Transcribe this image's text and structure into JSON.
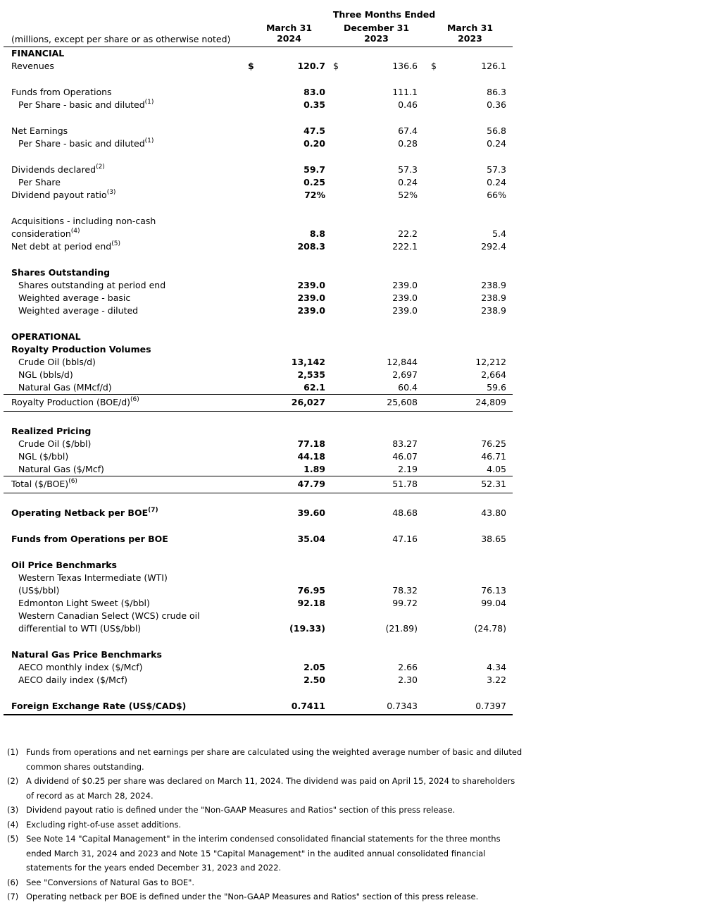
{
  "table": {
    "unit_note": "(millions, except per share or as otherwise noted)",
    "period_header": "Three Months Ended",
    "columns": [
      {
        "line1": "March 31",
        "line2": "2024"
      },
      {
        "line1": "December 31",
        "line2": "2023"
      },
      {
        "line1": "March 31",
        "line2": "2023"
      }
    ],
    "rows": [
      {
        "type": "section",
        "label": "FINANCIAL"
      },
      {
        "type": "data",
        "label": "Revenues",
        "dollar": true,
        "values": [
          "120.7",
          "136.6",
          "126.1"
        ]
      },
      {
        "type": "spacer"
      },
      {
        "type": "data",
        "label": "Funds from Operations",
        "values": [
          "83.0",
          "111.1",
          "86.3"
        ]
      },
      {
        "type": "data",
        "label": "Per Share - basic and diluted",
        "sup": "(1)",
        "indent": true,
        "values": [
          "0.35",
          "0.46",
          "0.36"
        ]
      },
      {
        "type": "spacer"
      },
      {
        "type": "data",
        "label": "Net Earnings",
        "values": [
          "47.5",
          "67.4",
          "56.8"
        ]
      },
      {
        "type": "data",
        "label": "Per Share - basic and diluted",
        "sup": "(1)",
        "indent": true,
        "values": [
          "0.20",
          "0.28",
          "0.24"
        ]
      },
      {
        "type": "spacer"
      },
      {
        "type": "data",
        "label": "Dividends declared",
        "sup": "(2)",
        "values": [
          "59.7",
          "57.3",
          "57.3"
        ]
      },
      {
        "type": "data",
        "label": "Per Share",
        "indent": true,
        "values": [
          "0.25",
          "0.24",
          "0.24"
        ]
      },
      {
        "type": "data",
        "label": "Dividend payout ratio",
        "sup": "(3)",
        "values": [
          "72%",
          "52%",
          "66%"
        ]
      },
      {
        "type": "spacer"
      },
      {
        "type": "data",
        "label": "Acquisitions - including non-cash",
        "label2": "consideration",
        "sup": "(4)",
        "values": [
          "8.8",
          "22.2",
          "5.4"
        ]
      },
      {
        "type": "data",
        "label": "Net debt at period end",
        "sup": "(5)",
        "values": [
          "208.3",
          "222.1",
          "292.4"
        ]
      },
      {
        "type": "spacer"
      },
      {
        "type": "section",
        "label": "Shares Outstanding"
      },
      {
        "type": "data",
        "label": "Shares outstanding at period end",
        "indent": true,
        "values": [
          "239.0",
          "239.0",
          "238.9"
        ]
      },
      {
        "type": "data",
        "label": "Weighted average - basic",
        "indent": true,
        "values": [
          "239.0",
          "239.0",
          "238.9"
        ]
      },
      {
        "type": "data",
        "label": "Weighted average - diluted",
        "indent": true,
        "values": [
          "239.0",
          "239.0",
          "238.9"
        ]
      },
      {
        "type": "spacer"
      },
      {
        "type": "section",
        "label": "OPERATIONAL"
      },
      {
        "type": "section",
        "label": "Royalty Production Volumes"
      },
      {
        "type": "data",
        "label": "Crude Oil (bbls/d)",
        "indent": true,
        "values": [
          "13,142",
          "12,844",
          "12,212"
        ]
      },
      {
        "type": "data",
        "label": "NGL (bbls/d)",
        "indent": true,
        "values": [
          "2,535",
          "2,697",
          "2,664"
        ]
      },
      {
        "type": "data",
        "label": "Natural Gas (MMcf/d)",
        "indent": true,
        "values": [
          "62.1",
          "60.4",
          "59.6"
        ]
      },
      {
        "type": "data",
        "label": "Royalty Production (BOE/d)",
        "sup": "(6)",
        "rules": "both",
        "values": [
          "26,027",
          "25,608",
          "24,809"
        ]
      },
      {
        "type": "spacer"
      },
      {
        "type": "section",
        "label": "Realized Pricing"
      },
      {
        "type": "data",
        "label": "Crude Oil ($/bbl)",
        "indent": true,
        "values": [
          "77.18",
          "83.27",
          "76.25"
        ]
      },
      {
        "type": "data",
        "label": "NGL ($/bbl)",
        "indent": true,
        "values": [
          "44.18",
          "46.07",
          "46.71"
        ]
      },
      {
        "type": "data",
        "label": "Natural Gas ($/Mcf)",
        "indent": true,
        "values": [
          "1.89",
          "2.19",
          "4.05"
        ]
      },
      {
        "type": "data",
        "label": "Total ($/BOE)",
        "sup": "(6)",
        "rules": "both",
        "values": [
          "47.79",
          "51.78",
          "52.31"
        ]
      },
      {
        "type": "spacer"
      },
      {
        "type": "data",
        "label": "Operating Netback per BOE",
        "sup": "(7)",
        "bold": true,
        "values": [
          "39.60",
          "48.68",
          "43.80"
        ]
      },
      {
        "type": "spacer"
      },
      {
        "type": "data",
        "label": "Funds from Operations per BOE",
        "bold": true,
        "values": [
          "35.04",
          "47.16",
          "38.65"
        ]
      },
      {
        "type": "spacer"
      },
      {
        "type": "section",
        "label": "Oil Price Benchmarks"
      },
      {
        "type": "data",
        "label": "Western Texas Intermediate (WTI)",
        "label2": "(US$/bbl)",
        "indent": true,
        "values": [
          "76.95",
          "78.32",
          "76.13"
        ]
      },
      {
        "type": "data",
        "label": "Edmonton Light Sweet ($/bbl)",
        "indent": true,
        "values": [
          "92.18",
          "99.72",
          "99.04"
        ]
      },
      {
        "type": "data",
        "label": "Western Canadian Select (WCS) crude oil",
        "label2": "differential to WTI (US$/bbl)",
        "indent": true,
        "values": [
          "(19.33)",
          "(21.89)",
          "(24.78)"
        ]
      },
      {
        "type": "spacer"
      },
      {
        "type": "section",
        "label": "Natural Gas Price Benchmarks"
      },
      {
        "type": "data",
        "label": "AECO monthly index ($/Mcf)",
        "indent": true,
        "values": [
          "2.05",
          "2.66",
          "4.34"
        ]
      },
      {
        "type": "data",
        "label": "AECO daily index ($/Mcf)",
        "indent": true,
        "values": [
          "2.50",
          "2.30",
          "3.22"
        ]
      },
      {
        "type": "spacer"
      },
      {
        "type": "data",
        "label": "Foreign Exchange Rate (US$/CAD$)",
        "bold": true,
        "rules": "thick",
        "values": [
          "0.7411",
          "0.7343",
          "0.7397"
        ]
      }
    ]
  },
  "footnotes": [
    {
      "num": "(1)",
      "text": "Funds from operations and net earnings per share are calculated using the weighted average number of basic and diluted common shares outstanding."
    },
    {
      "num": "(2)",
      "text": "A dividend of $0.25 per share was declared on March 11, 2024. The dividend was paid on April 15, 2024 to shareholders of record as at March 28, 2024."
    },
    {
      "num": "(3)",
      "text": "Dividend payout ratio is defined under the \"Non-GAAP Measures and Ratios\" section of this press release."
    },
    {
      "num": "(4)",
      "text": "Excluding right-of-use asset additions."
    },
    {
      "num": "(5)",
      "text": "See Note 14 \"Capital Management\" in the interim condensed consolidated financial statements for the three months ended March 31, 2024 and 2023 and Note 15 \"Capital Management\" in the audited annual consolidated financial statements for the years ended December 31, 2023 and 2022."
    },
    {
      "num": "(6)",
      "text": "See \"Conversions of Natural Gas to BOE\"."
    },
    {
      "num": "(7)",
      "text": "Operating netback per BOE is defined under the \"Non-GAAP Measures and Ratios\" section of this press release."
    }
  ]
}
